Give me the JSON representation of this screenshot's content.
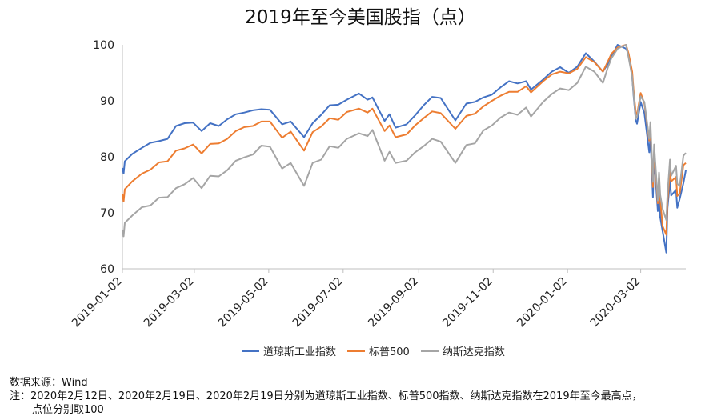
{
  "chart_data": {
    "type": "line",
    "title": "2019年至今美国股指（点）",
    "ylim": [
      60,
      100
    ],
    "yticks": [
      60,
      70,
      80,
      90,
      100
    ],
    "xticks": [
      "2019-01-02",
      "2019-03-02",
      "2019-05-02",
      "2019-07-02",
      "2019-09-02",
      "2019-11-02",
      "2020-01-02",
      "2020-03-02"
    ],
    "grid": false,
    "legend_position": "bottom",
    "series": [
      {
        "name": "道琼斯工业指数",
        "color": "#4472C4",
        "points": [
          [
            "2019-01-02",
            78
          ],
          [
            "2019-01-03",
            77
          ],
          [
            "2019-01-04",
            79.2
          ],
          [
            "2019-01-10",
            80.5
          ],
          [
            "2019-01-18",
            81.6
          ],
          [
            "2019-01-25",
            82.5
          ],
          [
            "2019-02-01",
            82.8
          ],
          [
            "2019-02-08",
            83.2
          ],
          [
            "2019-02-15",
            85.5
          ],
          [
            "2019-02-22",
            86.0
          ],
          [
            "2019-03-01",
            86.1
          ],
          [
            "2019-03-08",
            84.6
          ],
          [
            "2019-03-15",
            86.0
          ],
          [
            "2019-03-22",
            85.5
          ],
          [
            "2019-03-29",
            86.7
          ],
          [
            "2019-04-05",
            87.6
          ],
          [
            "2019-04-12",
            87.9
          ],
          [
            "2019-04-19",
            88.3
          ],
          [
            "2019-04-26",
            88.5
          ],
          [
            "2019-05-03",
            88.4
          ],
          [
            "2019-05-13",
            85.8
          ],
          [
            "2019-05-20",
            86.3
          ],
          [
            "2019-05-31",
            83.5
          ],
          [
            "2019-06-07",
            86.0
          ],
          [
            "2019-06-14",
            87.5
          ],
          [
            "2019-06-21",
            89.2
          ],
          [
            "2019-06-28",
            89.3
          ],
          [
            "2019-07-05",
            90.2
          ],
          [
            "2019-07-15",
            91.3
          ],
          [
            "2019-07-22",
            90.2
          ],
          [
            "2019-07-26",
            90.6
          ],
          [
            "2019-08-05",
            86.4
          ],
          [
            "2019-08-09",
            87.6
          ],
          [
            "2019-08-14",
            85.2
          ],
          [
            "2019-08-23",
            85.8
          ],
          [
            "2019-08-30",
            87.4
          ],
          [
            "2019-09-06",
            89.2
          ],
          [
            "2019-09-13",
            90.7
          ],
          [
            "2019-09-20",
            90.5
          ],
          [
            "2019-10-02",
            86.5
          ],
          [
            "2019-10-11",
            89.5
          ],
          [
            "2019-10-18",
            89.8
          ],
          [
            "2019-10-25",
            90.6
          ],
          [
            "2019-11-01",
            91.1
          ],
          [
            "2019-11-08",
            92.4
          ],
          [
            "2019-11-15",
            93.5
          ],
          [
            "2019-11-22",
            93.1
          ],
          [
            "2019-11-29",
            93.5
          ],
          [
            "2019-12-03",
            92.0
          ],
          [
            "2019-12-13",
            93.8
          ],
          [
            "2019-12-20",
            95.2
          ],
          [
            "2019-12-27",
            96.0
          ],
          [
            "2020-01-03",
            95.0
          ],
          [
            "2020-01-10",
            96.1
          ],
          [
            "2020-01-17",
            98.5
          ],
          [
            "2020-01-24",
            97.0
          ],
          [
            "2020-01-31",
            95.2
          ],
          [
            "2020-02-04",
            96.6
          ],
          [
            "2020-02-07",
            97.8
          ],
          [
            "2020-02-12",
            100
          ],
          [
            "2020-02-19",
            99.3
          ],
          [
            "2020-02-21",
            98.4
          ],
          [
            "2020-02-24",
            94.3
          ],
          [
            "2020-02-25",
            91.3
          ],
          [
            "2020-02-27",
            86.5
          ],
          [
            "2020-02-28",
            85.9
          ],
          [
            "2020-03-02",
            89.8
          ],
          [
            "2020-03-05",
            87.8
          ],
          [
            "2020-03-09",
            80.8
          ],
          [
            "2020-03-10",
            83.6
          ],
          [
            "2020-03-12",
            72.8
          ],
          [
            "2020-03-13",
            80.0
          ],
          [
            "2020-03-16",
            70.3
          ],
          [
            "2020-03-17",
            74.0
          ],
          [
            "2020-03-18",
            69.2
          ],
          [
            "2020-03-20], [], []2020-03-20",
            66.7
          ],
          [
            "2020-03-23",
            62.9
          ],
          [
            "2020-03-24",
            70.8
          ],
          [
            "2020-03-26",
            75.7
          ],
          [
            "2020-03-27",
            73.1
          ],
          [
            "2020-03-31",
            74.1
          ],
          [
            "2020-04-01",
            70.9
          ],
          [
            "2020-04-03",
            72.5
          ],
          [
            "2020-04-06",
            75.3
          ],
          [
            "2020-04-08",
            77.6
          ]
        ]
      },
      {
        "name": "标普500",
        "color": "#ED7D31",
        "points": [
          [
            "2019-01-02",
            73.4
          ],
          [
            "2019-01-03",
            72.0
          ],
          [
            "2019-01-04",
            74.2
          ],
          [
            "2019-01-10",
            75.6
          ],
          [
            "2019-01-18",
            77.0
          ],
          [
            "2019-01-25",
            77.7
          ],
          [
            "2019-02-01",
            79.0
          ],
          [
            "2019-02-08",
            79.2
          ],
          [
            "2019-02-15",
            81.1
          ],
          [
            "2019-02-22",
            81.5
          ],
          [
            "2019-03-01",
            82.2
          ],
          [
            "2019-03-08",
            80.6
          ],
          [
            "2019-03-15",
            82.3
          ],
          [
            "2019-03-22",
            82.4
          ],
          [
            "2019-03-29",
            83.2
          ],
          [
            "2019-04-05",
            84.6
          ],
          [
            "2019-04-12",
            85.3
          ],
          [
            "2019-04-19",
            85.5
          ],
          [
            "2019-04-26",
            86.3
          ],
          [
            "2019-05-03",
            86.3
          ],
          [
            "2019-05-13",
            83.4
          ],
          [
            "2019-05-20",
            84.5
          ],
          [
            "2019-05-31",
            81.1
          ],
          [
            "2019-06-07",
            84.4
          ],
          [
            "2019-06-14",
            85.4
          ],
          [
            "2019-06-21",
            86.9
          ],
          [
            "2019-06-28",
            86.6
          ],
          [
            "2019-07-05",
            88.0
          ],
          [
            "2019-07-15",
            88.6
          ],
          [
            "2019-07-22",
            87.9
          ],
          [
            "2019-07-26",
            88.6
          ],
          [
            "2019-08-05",
            84.6
          ],
          [
            "2019-08-09",
            85.6
          ],
          [
            "2019-08-14",
            83.5
          ],
          [
            "2019-08-23",
            84.0
          ],
          [
            "2019-08-30",
            85.6
          ],
          [
            "2019-09-06",
            86.9
          ],
          [
            "2019-09-13",
            88.1
          ],
          [
            "2019-09-20",
            87.8
          ],
          [
            "2019-10-02",
            85.0
          ],
          [
            "2019-10-11",
            87.3
          ],
          [
            "2019-10-18",
            87.7
          ],
          [
            "2019-10-25",
            89.0
          ],
          [
            "2019-11-01",
            90.0
          ],
          [
            "2019-11-08",
            90.9
          ],
          [
            "2019-11-15",
            91.6
          ],
          [
            "2019-11-22",
            91.6
          ],
          [
            "2019-11-29",
            92.6
          ],
          [
            "2019-12-03",
            91.5
          ],
          [
            "2019-12-13",
            93.5
          ],
          [
            "2019-12-20",
            94.7
          ],
          [
            "2019-12-27",
            95.2
          ],
          [
            "2020-01-03",
            94.9
          ],
          [
            "2020-01-10",
            95.7
          ],
          [
            "2020-01-17",
            97.8
          ],
          [
            "2020-01-24",
            96.9
          ],
          [
            "2020-01-31",
            95.2
          ],
          [
            "2020-02-04",
            97.0
          ],
          [
            "2020-02-07",
            98.4
          ],
          [
            "2020-02-12",
            99.5
          ],
          [
            "2020-02-19",
            100
          ],
          [
            "2020-02-21",
            98.5
          ],
          [
            "2020-02-24",
            95.2
          ],
          [
            "2020-02-25",
            92.3
          ],
          [
            "2020-02-27",
            87.8
          ],
          [
            "2020-02-28",
            87.5
          ],
          [
            "2020-03-02",
            91.4
          ],
          [
            "2020-03-05",
            89.5
          ],
          [
            "2020-03-09",
            82.9
          ],
          [
            "2020-03-10",
            85.1
          ],
          [
            "2020-03-12",
            74.6
          ],
          [
            "2020-03-13",
            80.9
          ],
          [
            "2020-03-16",
            71.7
          ],
          [
            "2020-03-17",
            76.3
          ],
          [
            "2020-03-18",
            72.4
          ],
          [
            "2020-03-20",
            67.6
          ],
          [
            "2020-03-23",
            66.1
          ],
          [
            "2020-03-24",
            72.0
          ],
          [
            "2020-03-26",
            77.4
          ],
          [
            "2020-03-27",
            75.6
          ],
          [
            "2020-03-31",
            76.4
          ],
          [
            "2020-04-01",
            73.0
          ],
          [
            "2020-04-03",
            73.5
          ],
          [
            "2020-04-06",
            78.5
          ],
          [
            "2020-04-08",
            78.9
          ]
        ]
      },
      {
        "name": "纳斯达克指数",
        "color": "#A5A5A5",
        "points": [
          [
            "2019-01-02",
            67.0
          ],
          [
            "2019-01-03",
            65.8
          ],
          [
            "2019-01-04",
            68.2
          ],
          [
            "2019-01-10",
            69.5
          ],
          [
            "2019-01-18",
            71.0
          ],
          [
            "2019-01-25",
            71.3
          ],
          [
            "2019-02-01",
            72.7
          ],
          [
            "2019-02-08",
            72.8
          ],
          [
            "2019-02-15",
            74.4
          ],
          [
            "2019-02-22",
            75.1
          ],
          [
            "2019-03-01",
            76.2
          ],
          [
            "2019-03-08",
            74.4
          ],
          [
            "2019-03-15",
            76.6
          ],
          [
            "2019-03-22",
            76.5
          ],
          [
            "2019-03-29",
            77.6
          ],
          [
            "2019-04-05",
            79.3
          ],
          [
            "2019-04-12",
            79.9
          ],
          [
            "2019-04-19",
            80.4
          ],
          [
            "2019-04-26",
            82.0
          ],
          [
            "2019-05-03",
            81.8
          ],
          [
            "2019-05-13",
            77.9
          ],
          [
            "2019-05-20",
            78.9
          ],
          [
            "2019-05-31",
            74.8
          ],
          [
            "2019-06-07",
            78.9
          ],
          [
            "2019-06-14",
            79.5
          ],
          [
            "2019-06-21",
            81.9
          ],
          [
            "2019-06-28",
            81.6
          ],
          [
            "2019-07-05",
            83.2
          ],
          [
            "2019-07-15",
            84.2
          ],
          [
            "2019-07-22",
            83.7
          ],
          [
            "2019-07-26",
            84.8
          ],
          [
            "2019-08-05",
            79.3
          ],
          [
            "2019-08-09",
            80.9
          ],
          [
            "2019-08-14",
            78.9
          ],
          [
            "2019-08-23",
            79.3
          ],
          [
            "2019-08-30",
            80.8
          ],
          [
            "2019-09-06",
            81.9
          ],
          [
            "2019-09-13",
            83.2
          ],
          [
            "2019-09-20",
            82.7
          ],
          [
            "2019-10-02",
            78.9
          ],
          [
            "2019-10-11",
            82.1
          ],
          [
            "2019-10-18",
            82.4
          ],
          [
            "2019-10-25",
            84.7
          ],
          [
            "2019-11-01",
            85.6
          ],
          [
            "2019-11-08",
            87.0
          ],
          [
            "2019-11-15",
            87.9
          ],
          [
            "2019-11-22",
            87.5
          ],
          [
            "2019-11-29",
            88.8
          ],
          [
            "2019-12-03",
            87.2
          ],
          [
            "2019-12-13",
            89.8
          ],
          [
            "2019-12-20",
            91.2
          ],
          [
            "2019-12-27",
            92.2
          ],
          [
            "2020-01-03",
            91.9
          ],
          [
            "2020-01-10",
            93.2
          ],
          [
            "2020-01-17",
            96.1
          ],
          [
            "2020-01-24",
            95.2
          ],
          [
            "2020-01-31",
            93.2
          ],
          [
            "2020-02-04",
            95.9
          ],
          [
            "2020-02-07",
            97.6
          ],
          [
            "2020-02-12",
            99.3
          ],
          [
            "2020-02-19",
            100
          ],
          [
            "2020-02-21",
            97.8
          ],
          [
            "2020-02-24",
            94.3
          ],
          [
            "2020-02-25",
            91.6
          ],
          [
            "2020-02-27",
            86.8
          ],
          [
            "2020-02-28",
            87.1
          ],
          [
            "2020-03-02",
            90.8
          ],
          [
            "2020-03-05",
            89.8
          ],
          [
            "2020-03-09",
            83.2
          ],
          [
            "2020-03-10",
            86.2
          ],
          [
            "2020-03-12",
            75.5
          ],
          [
            "2020-03-13",
            82.2
          ],
          [
            "2020-03-16",
            72.2
          ],
          [
            "2020-03-17",
            77.2
          ],
          [
            "2020-03-18",
            73.2
          ],
          [
            "2020-03-20",
            70.7
          ],
          [
            "2020-03-23",
            68.7
          ],
          [
            "2020-03-24",
            73.3
          ],
          [
            "2020-03-26",
            79.5
          ],
          [
            "2020-03-27",
            76.6
          ],
          [
            "2020-03-31",
            78.4
          ],
          [
            "2020-04-01",
            75.2
          ],
          [
            "2020-04-03",
            74.8
          ],
          [
            "2020-04-06",
            80.2
          ],
          [
            "2020-04-08",
            80.7
          ]
        ]
      }
    ]
  },
  "notes": {
    "source": "数据来源：Wind",
    "note_line1": "注：2020年2月12日、2020年2月19日、2020年2月19日分别为道琼斯工业指数、标普500指数、纳斯达克指数在2019年至今最高点，",
    "note_line2": "点位分别取100"
  }
}
